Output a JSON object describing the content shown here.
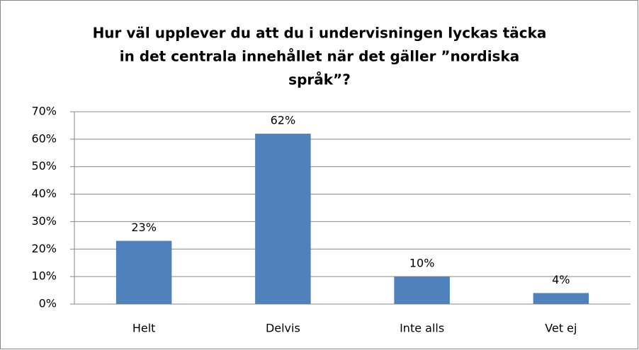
{
  "chart_data": {
    "type": "bar",
    "title": [
      "Hur väl upplever du att du i undervisningen lyckas täcka",
      "in det  centrala innehållet när det gäller ”nordiska",
      "språk”?"
    ],
    "categories": [
      "Helt",
      "Delvis",
      "Inte alls",
      "Vet ej"
    ],
    "values": [
      23,
      62,
      10,
      4
    ],
    "value_labels": [
      "23%",
      "62%",
      "10%",
      "4%"
    ],
    "color": "#4f81bd",
    "ylim": [
      0,
      70
    ],
    "yticks": [
      {
        "value": 0,
        "label": "0%"
      },
      {
        "value": 10,
        "label": "10%"
      },
      {
        "value": 20,
        "label": "20%"
      },
      {
        "value": 30,
        "label": "30%"
      },
      {
        "value": 40,
        "label": "40%"
      },
      {
        "value": 50,
        "label": "50%"
      },
      {
        "value": 60,
        "label": "60%"
      },
      {
        "value": 70,
        "label": "70%"
      }
    ],
    "grid": true
  }
}
